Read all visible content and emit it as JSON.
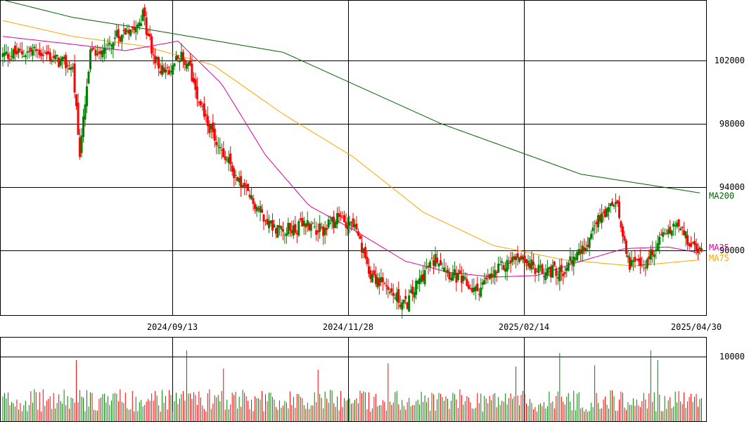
{
  "chart_data": [
    {
      "type": "candlestick",
      "title": "",
      "xlabel": "",
      "ylabel": "",
      "x_ticks": [
        "2024/09/13",
        "2024/11/28",
        "2025/02/14",
        "2025/04/30"
      ],
      "y_ticks": [
        {
          "value": 102000,
          "label": "102000"
        },
        {
          "value": 98000,
          "label": "98000"
        },
        {
          "value": 94000,
          "label": "94000"
        },
        {
          "value": 90000,
          "label": "90000"
        }
      ],
      "ylim": [
        85900,
        105800
      ],
      "grid": true,
      "colors": {
        "up": "#008000",
        "down": "#ff0000",
        "ma25": "#e000a0",
        "ma75": "#ffa500",
        "ma200": "#006400"
      },
      "moving_averages": [
        {
          "name": "MA25",
          "color": "#e000a0"
        },
        {
          "name": "MA75",
          "color": "#ffa500"
        },
        {
          "name": "MA200",
          "color": "#006400"
        }
      ],
      "ma200_anchors": [
        [
          0,
          105800
        ],
        [
          40,
          104700
        ],
        [
          80,
          104000
        ],
        [
          160,
          102500
        ],
        [
          250,
          98000
        ],
        [
          330,
          94800
        ],
        [
          399,
          93600
        ]
      ],
      "ma75_anchors": [
        [
          0,
          104500
        ],
        [
          40,
          103500
        ],
        [
          80,
          102900
        ],
        [
          120,
          101700
        ],
        [
          160,
          98600
        ],
        [
          200,
          95900
        ],
        [
          240,
          92400
        ],
        [
          280,
          90300
        ],
        [
          320,
          89400
        ],
        [
          360,
          89000
        ],
        [
          399,
          89400
        ]
      ],
      "ma25_anchors": [
        [
          0,
          103500
        ],
        [
          40,
          103000
        ],
        [
          70,
          102600
        ],
        [
          100,
          103200
        ],
        [
          125,
          100500
        ],
        [
          150,
          96000
        ],
        [
          175,
          92800
        ],
        [
          200,
          91300
        ],
        [
          230,
          89300
        ],
        [
          255,
          88600
        ],
        [
          280,
          88300
        ],
        [
          305,
          88400
        ],
        [
          330,
          89300
        ],
        [
          355,
          90100
        ],
        [
          380,
          90200
        ],
        [
          399,
          89800
        ]
      ],
      "close_anchors": [
        [
          0,
          102300
        ],
        [
          20,
          102600
        ],
        [
          40,
          101500
        ],
        [
          44,
          96000
        ],
        [
          50,
          102300
        ],
        [
          60,
          103000
        ],
        [
          75,
          104300
        ],
        [
          80,
          104800
        ],
        [
          87,
          101900
        ],
        [
          95,
          101000
        ],
        [
          100,
          102500
        ],
        [
          107,
          101400
        ],
        [
          112,
          99600
        ],
        [
          118,
          97700
        ],
        [
          125,
          96300
        ],
        [
          135,
          94300
        ],
        [
          145,
          92700
        ],
        [
          155,
          91400
        ],
        [
          165,
          91300
        ],
        [
          175,
          91700
        ],
        [
          182,
          91200
        ],
        [
          192,
          92000
        ],
        [
          200,
          91700
        ],
        [
          205,
          90000
        ],
        [
          210,
          88600
        ],
        [
          220,
          87400
        ],
        [
          230,
          86500
        ],
        [
          240,
          88500
        ],
        [
          248,
          89600
        ],
        [
          255,
          88600
        ],
        [
          270,
          87400
        ],
        [
          285,
          88900
        ],
        [
          295,
          89700
        ],
        [
          305,
          88700
        ],
        [
          320,
          88700
        ],
        [
          330,
          89900
        ],
        [
          340,
          91800
        ],
        [
          350,
          93000
        ],
        [
          358,
          89200
        ],
        [
          365,
          88900
        ],
        [
          375,
          90600
        ],
        [
          385,
          91600
        ],
        [
          392,
          90400
        ],
        [
          399,
          89800
        ]
      ],
      "volume": {
        "y_ticks": [
          {
            "value": 10000,
            "label": "10000"
          }
        ],
        "ylim": [
          0,
          13000
        ]
      }
    }
  ]
}
